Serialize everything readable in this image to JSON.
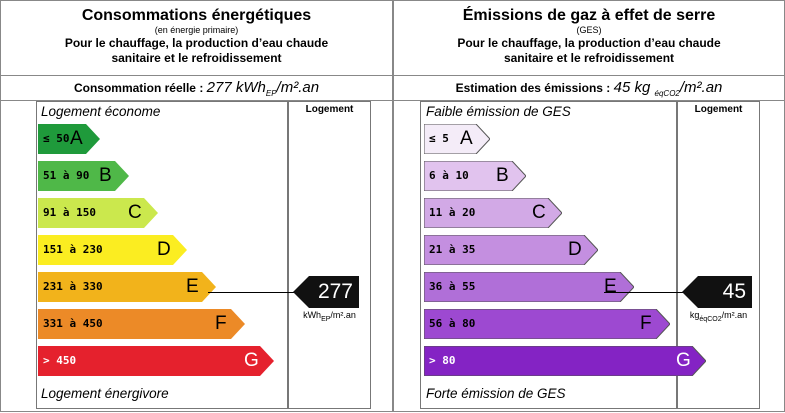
{
  "energy": {
    "title": "Consommations énergétiques",
    "subtitle": "(en énergie primaire)",
    "description_line1": "Pour le chauffage, la production d’eau chaude",
    "description_line2": "sanitaire et le refroidissement",
    "reading_label": "Consommation réelle : ",
    "reading_value": "277 kWh",
    "reading_sub": "EP",
    "reading_suffix": "/m².an",
    "column_header": "Logement",
    "top_label": "Logement économe",
    "bottom_label": "Logement énergivore",
    "current_value": "277",
    "current_class": "E",
    "unit_main": "kWh",
    "unit_sub": "EP",
    "unit_suffix": "/m².an",
    "bars": [
      {
        "range": "≤ 50",
        "letter": "A",
        "color": "#1f9a3b"
      },
      {
        "range": "51 à 90",
        "letter": "B",
        "color": "#4fb848"
      },
      {
        "range": "91 à 150",
        "letter": "C",
        "color": "#cbe84d"
      },
      {
        "range": "151 à 230",
        "letter": "D",
        "color": "#fbed21"
      },
      {
        "range": "231 à 330",
        "letter": "E",
        "color": "#f2b31b"
      },
      {
        "range": "331 à 450",
        "letter": "F",
        "color": "#ec8a27"
      },
      {
        "range": "> 450",
        "letter": "G",
        "color": "#e5212d"
      }
    ]
  },
  "ges": {
    "title": "Émissions de gaz à effet de serre",
    "subtitle": "(GES)",
    "description_line1": "Pour le chauffage, la production d’eau chaude",
    "description_line2": "sanitaire et le refroidissement",
    "reading_label": "Estimation des émissions : ",
    "reading_value": "45 kg ",
    "reading_sub": "éqCO2",
    "reading_suffix": "/m².an",
    "column_header": "Logement",
    "top_label": "Faible émission de GES",
    "bottom_label": "Forte émission de GES",
    "current_value": "45",
    "current_class": "E",
    "unit_main": "kg",
    "unit_sub": "éqCO2",
    "unit_suffix": "/m².an",
    "bars": [
      {
        "range": "≤ 5",
        "letter": "A",
        "color": "#f4ecf8"
      },
      {
        "range": "6 à 10",
        "letter": "B",
        "color": "#e1c3ee"
      },
      {
        "range": "11 à 20",
        "letter": "C",
        "color": "#d2a9e6"
      },
      {
        "range": "21 à 35",
        "letter": "D",
        "color": "#c48fe0"
      },
      {
        "range": "36 à 55",
        "letter": "E",
        "color": "#b06fd8"
      },
      {
        "range": "56 à 80",
        "letter": "F",
        "color": "#9d49d1"
      },
      {
        "range": "> 80",
        "letter": "G",
        "color": "#8423c4"
      }
    ]
  }
}
